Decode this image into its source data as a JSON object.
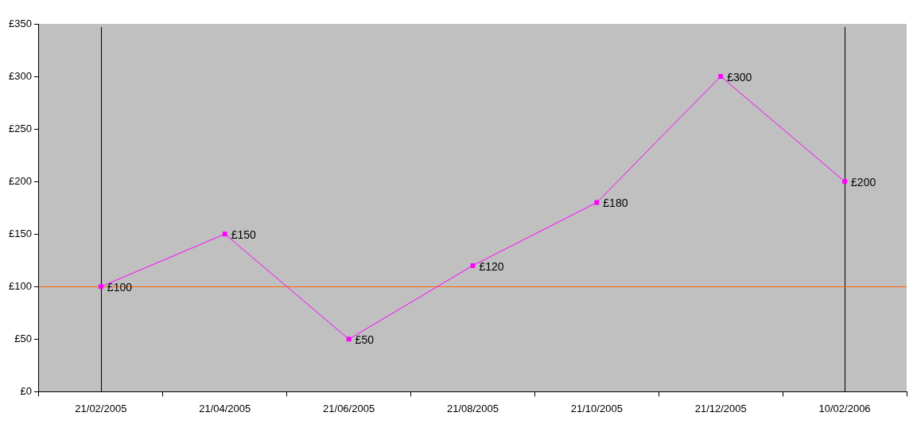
{
  "chart_data": {
    "type": "line",
    "categories": [
      "21/02/2005",
      "21/04/2005",
      "21/06/2005",
      "21/08/2005",
      "21/10/2005",
      "21/12/2005",
      "10/02/2006"
    ],
    "series": [
      {
        "color": "#ff00ff",
        "values": [
          100,
          150,
          50,
          120,
          180,
          300,
          200
        ],
        "value_labels": [
          "£100",
          "£150",
          "£50",
          "£120",
          "£180",
          "£300",
          "£200"
        ]
      }
    ],
    "ylim": [
      0,
      350
    ],
    "yticks": [
      {
        "value": 0,
        "label": "£0"
      },
      {
        "value": 50,
        "label": "£50"
      },
      {
        "value": 100,
        "label": "£100"
      },
      {
        "value": 150,
        "label": "£150"
      },
      {
        "value": 200,
        "label": "£200"
      },
      {
        "value": 250,
        "label": "£250"
      },
      {
        "value": 300,
        "label": "£300"
      },
      {
        "value": 350,
        "label": "£350"
      }
    ],
    "ref_lines": [
      {
        "axis": "x",
        "value": "21/02/2005",
        "color": "#000000"
      },
      {
        "axis": "x",
        "value": "10/02/2006",
        "color": "#000000"
      },
      {
        "axis": "y",
        "value": 100,
        "color": "#ff6600"
      }
    ],
    "marker": "square",
    "line_style": "solid",
    "grid": false,
    "legend": false
  }
}
